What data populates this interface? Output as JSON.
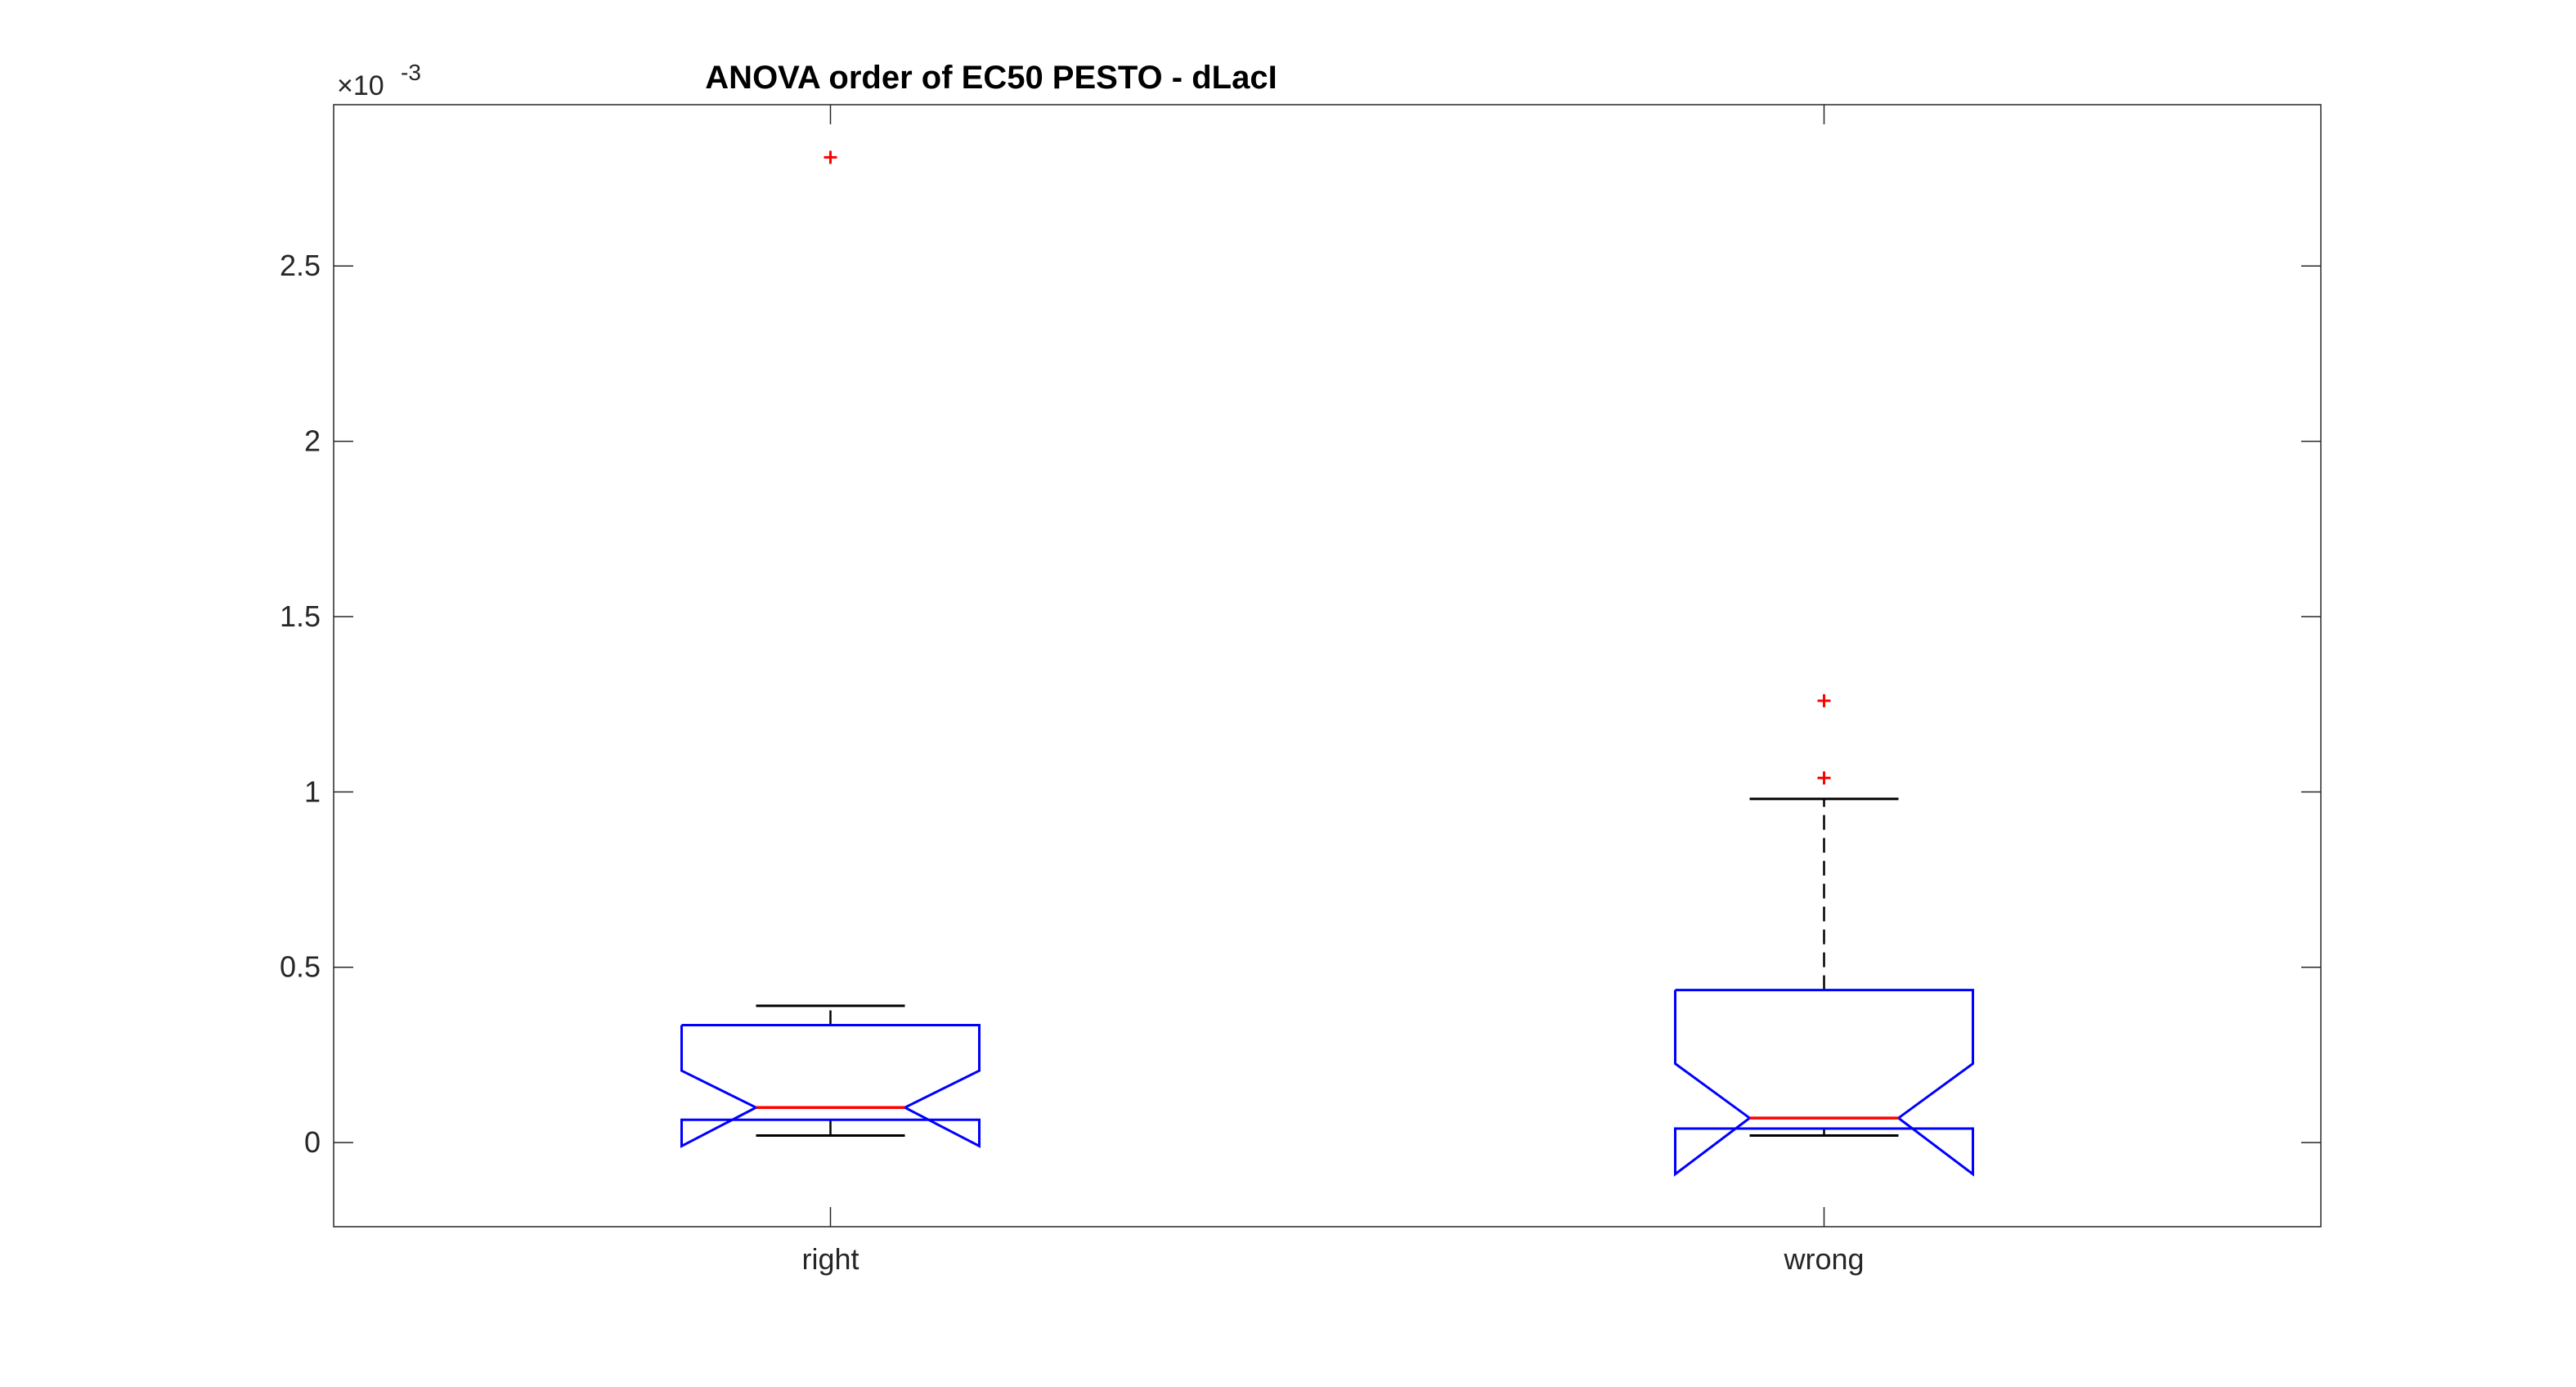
{
  "chart_data": {
    "type": "box",
    "title": "ANOVA order of EC50 PESTO - dLacI",
    "xlabel": "",
    "ylabel": "",
    "notched": true,
    "y_scale_exponent": {
      "times": "×10",
      "exponent": "-3"
    },
    "ylim": [
      -0.00024,
      0.00296
    ],
    "yticks": [
      0,
      0.0005,
      0.001,
      0.0015,
      0.002,
      0.0025
    ],
    "ytick_labels": [
      "0",
      "0.5",
      "1",
      "1.5",
      "2",
      "2.5"
    ],
    "categories": [
      "right",
      "wrong"
    ],
    "boxes": [
      {
        "category": "right",
        "q1": 6.5e-05,
        "median": 0.0001,
        "q3": 0.000335,
        "notch_low": -1e-05,
        "notch_high": 0.000205,
        "whisker_low": 2e-05,
        "whisker_high": 0.00039,
        "outliers": [
          0.00281
        ]
      },
      {
        "category": "wrong",
        "q1": 4e-05,
        "median": 7e-05,
        "q3": 0.000435,
        "notch_low": -9e-05,
        "notch_high": 0.000225,
        "whisker_low": 2e-05,
        "whisker_high": 0.00098,
        "outliers": [
          0.00104,
          0.00126
        ]
      }
    ],
    "colors": {
      "box": "#0000ff",
      "median": "#ff0000",
      "whisker": "#000000",
      "outlier": "#ff0000",
      "axes": "#262626"
    },
    "grid": false,
    "legend": "none"
  }
}
